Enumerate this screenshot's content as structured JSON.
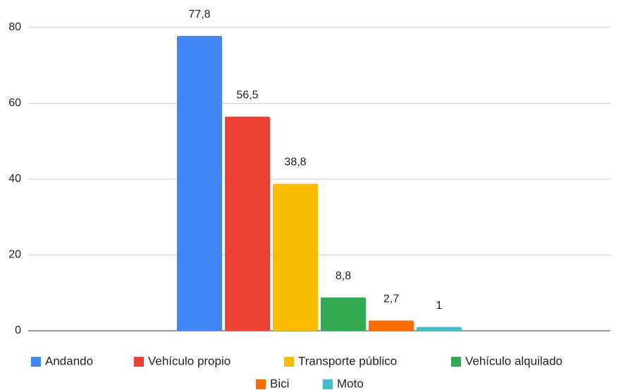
{
  "chart_data": {
    "type": "bar",
    "categories": [
      null
    ],
    "series": [
      {
        "name": "Andando",
        "color": "#4285f4",
        "values": [
          77.8
        ],
        "value_labels": [
          "77,8"
        ]
      },
      {
        "name": "Vehículo propio",
        "color": "#ea4335",
        "values": [
          56.5
        ],
        "value_labels": [
          "56,5"
        ]
      },
      {
        "name": "Transporte público",
        "color": "#fbbc04",
        "values": [
          38.8
        ],
        "value_labels": [
          "38,8"
        ]
      },
      {
        "name": "Vehículo alquilado",
        "color": "#34a853",
        "values": [
          8.8
        ],
        "value_labels": [
          "8,8"
        ]
      },
      {
        "name": "Bici",
        "color": "#ff6d01",
        "values": [
          2.7
        ],
        "value_labels": [
          "2,7"
        ]
      },
      {
        "name": "Moto",
        "color": "#46bdc6",
        "values": [
          1
        ],
        "value_labels": [
          "1"
        ]
      }
    ],
    "ylim": [
      0,
      80
    ],
    "yticks": [
      0,
      20,
      40,
      60,
      80
    ],
    "grid": true,
    "legend": "bottom"
  }
}
